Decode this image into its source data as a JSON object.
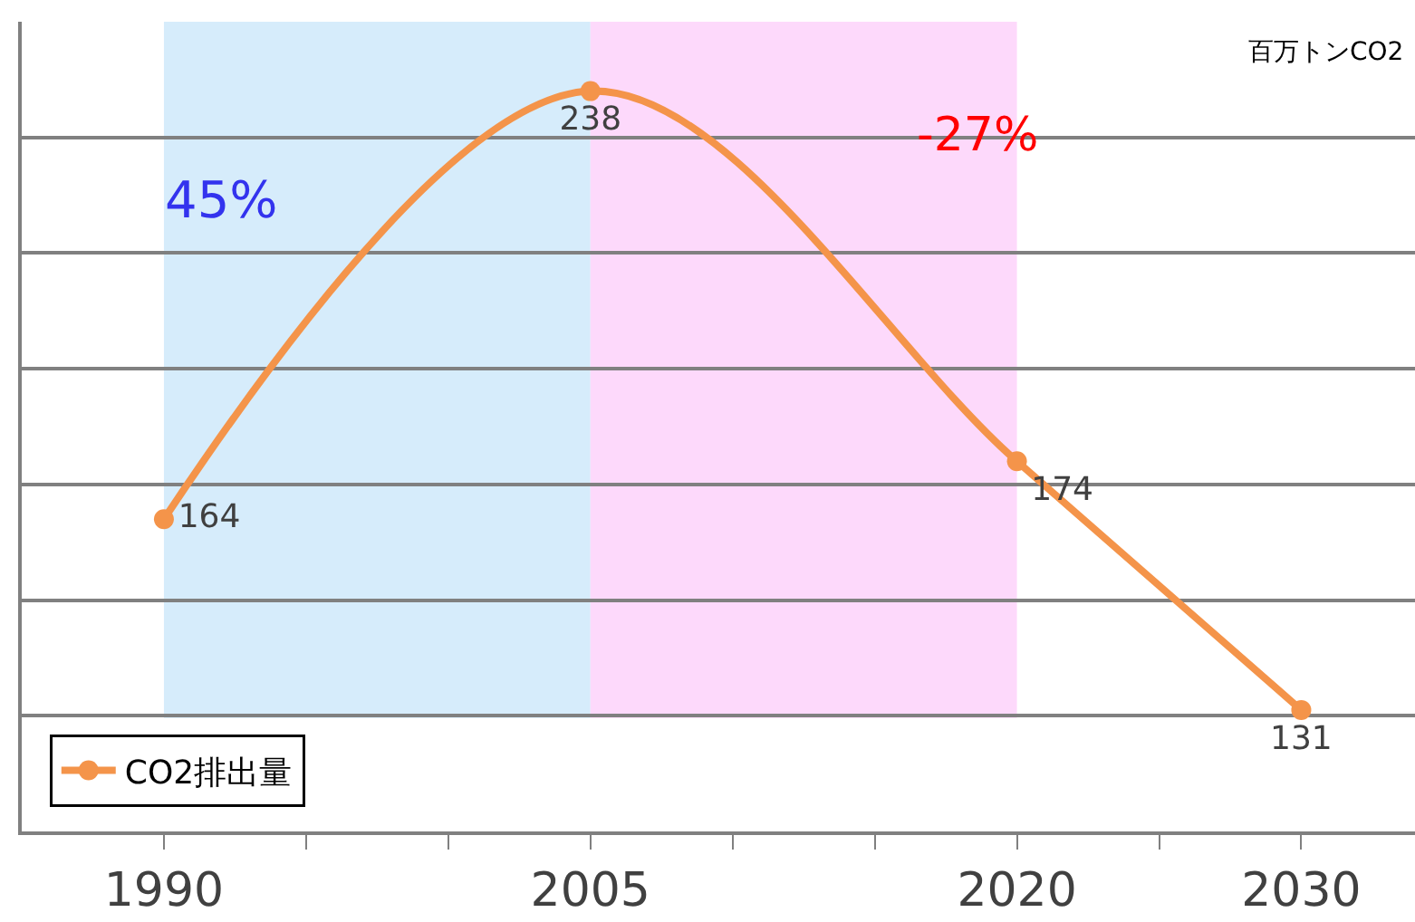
{
  "chart_data": {
    "type": "line",
    "x": [
      1990,
      2005,
      2020,
      2030
    ],
    "series": [
      {
        "name": "CO2排出量",
        "color": "#f4944a",
        "values": [
          164,
          238,
          174,
          131
        ]
      }
    ],
    "xlim": [
      1985,
      2034
    ],
    "xticks": [
      1990,
      {
        "value": 1995,
        "label": null
      },
      {
        "value": 2000,
        "label": null
      },
      2005,
      {
        "value": 2010,
        "label": null
      },
      {
        "value": 2015,
        "label": null
      },
      2020,
      {
        "value": 2025,
        "label": null
      },
      2030
    ],
    "ylim": [
      110,
      250
    ],
    "yticks": [
      {
        "value": 110,
        "label": null
      },
      {
        "value": 130,
        "label": null
      },
      {
        "value": 150,
        "label": null
      },
      {
        "value": 170,
        "label": null
      },
      {
        "value": 190,
        "label": null
      },
      {
        "value": 210,
        "label": null
      },
      {
        "value": 230,
        "label": null
      }
    ],
    "tick_labels": "x",
    "grid": "y",
    "legend": "bottom left",
    "marker": "circle",
    "line_style": "solid",
    "data_labels": true,
    "bands": [
      {
        "axis": "x",
        "from": 1990,
        "to": 2005,
        "color": "#d6ecfb"
      },
      {
        "axis": "x",
        "from": 2005,
        "to": 2020,
        "color": "#fdd9fb"
      }
    ],
    "annotations": [
      "百万トンCO2",
      "45%",
      "-27%"
    ]
  }
}
